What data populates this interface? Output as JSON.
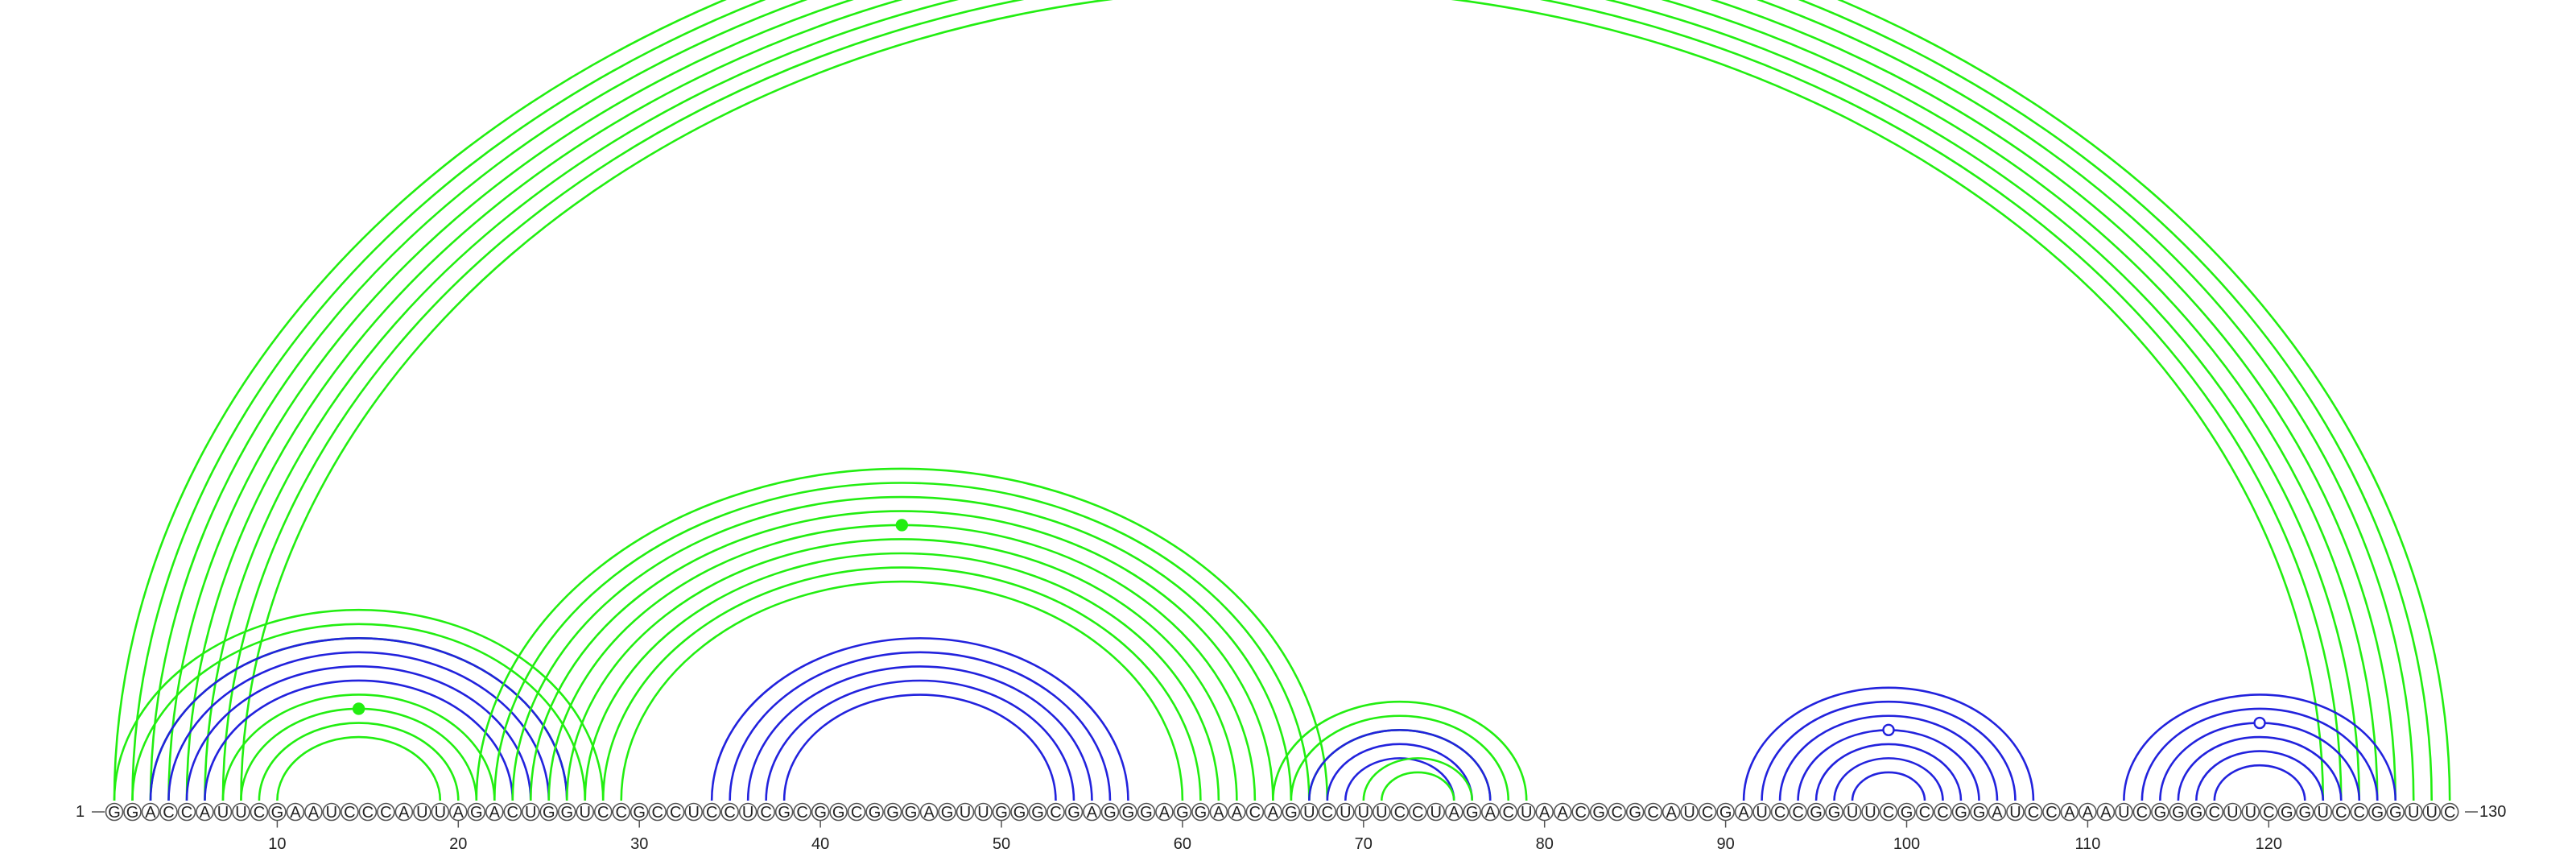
{
  "sequence": "GGACCAUUCGAAUCCCAUUAGACUGGUCCGCCUCCUCGCGGCGGGAGUUGGGCGAGGGAGGAACAGUCUUUCCUAGACUAACGCGCAUCGAUCCGGUUCGCCGGAUCCAAAUCGGGCUUCGGUCCGGUUC",
  "start_label": "1",
  "end_label": "130",
  "colors": {
    "green": "#22ee11",
    "blue": "#2222dd"
  },
  "chart_data": {
    "type": "arc-diagram",
    "length": 130,
    "ticks": [
      10,
      20,
      30,
      40,
      50,
      60,
      70,
      80,
      90,
      100,
      110,
      120
    ],
    "helices": [
      {
        "color": "green",
        "i": 1,
        "j": 130,
        "n": 8,
        "step": 1,
        "marker": "open"
      },
      {
        "color": "green",
        "i": 1,
        "j": 28,
        "n": 3,
        "step": 1
      },
      {
        "color": "blue",
        "i": 3,
        "j": 26,
        "n": 4,
        "step": 1
      },
      {
        "color": "green",
        "i": 7,
        "j": 22,
        "n": 4,
        "step": 1,
        "marker": "filled"
      },
      {
        "color": "green",
        "i": 21,
        "j": 68,
        "n": 9,
        "step": 1,
        "marker": "filled"
      },
      {
        "color": "blue",
        "i": 34,
        "j": 57,
        "n": 5,
        "step": 1
      },
      {
        "color": "green",
        "i": 65,
        "j": 79,
        "n": 3,
        "step": 1
      },
      {
        "color": "blue",
        "i": 67,
        "j": 77,
        "n": 3,
        "step": 1
      },
      {
        "color": "green",
        "i": 70,
        "j": 76,
        "n": 2,
        "step": 1
      },
      {
        "color": "blue",
        "i": 91,
        "j": 107,
        "n": 7,
        "step": 1,
        "marker": "open"
      },
      {
        "color": "blue",
        "i": 112,
        "j": 127,
        "n": 6,
        "step": 1,
        "marker": "open"
      }
    ]
  }
}
